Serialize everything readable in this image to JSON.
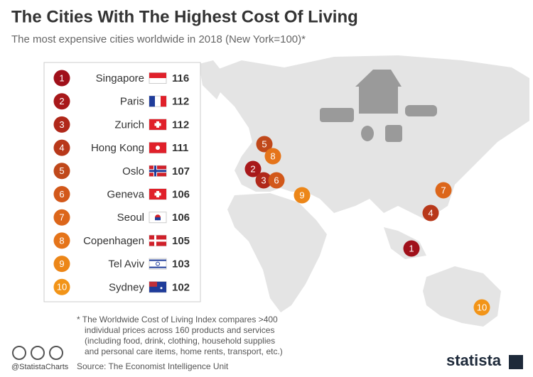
{
  "chart_data": {
    "type": "ranking",
    "title": "The Cities With The Highest Cost Of Living",
    "subtitle": "The most expensive cities worldwide in 2018 (New York=100)*",
    "ranks": [
      1,
      2,
      3,
      4,
      5,
      6,
      7,
      8,
      9,
      10
    ],
    "categories": [
      "Singapore",
      "Paris",
      "Zurich",
      "Hong Kong",
      "Oslo",
      "Geneva",
      "Seoul",
      "Copenhagen",
      "Tel Aviv",
      "Sydney"
    ],
    "values": [
      116,
      112,
      112,
      111,
      107,
      106,
      106,
      105,
      103,
      102
    ],
    "colors": [
      "#a0101a",
      "#a8181a",
      "#b0281a",
      "#b8381a",
      "#c0481a",
      "#d2581a",
      "#dc661a",
      "#e5741a",
      "#ec8618",
      "#f29418"
    ],
    "footnote": [
      "* The Worldwide Cost of Living Index compares >400",
      "individual prices across 160 products and services",
      "(including food, drink, clothing, household supplies",
      "and personal care items, home rents, transport, etc.)"
    ],
    "source": "Source: The Economist Intelligence Unit",
    "credit": "@StatistaCharts",
    "brand": "statista"
  }
}
